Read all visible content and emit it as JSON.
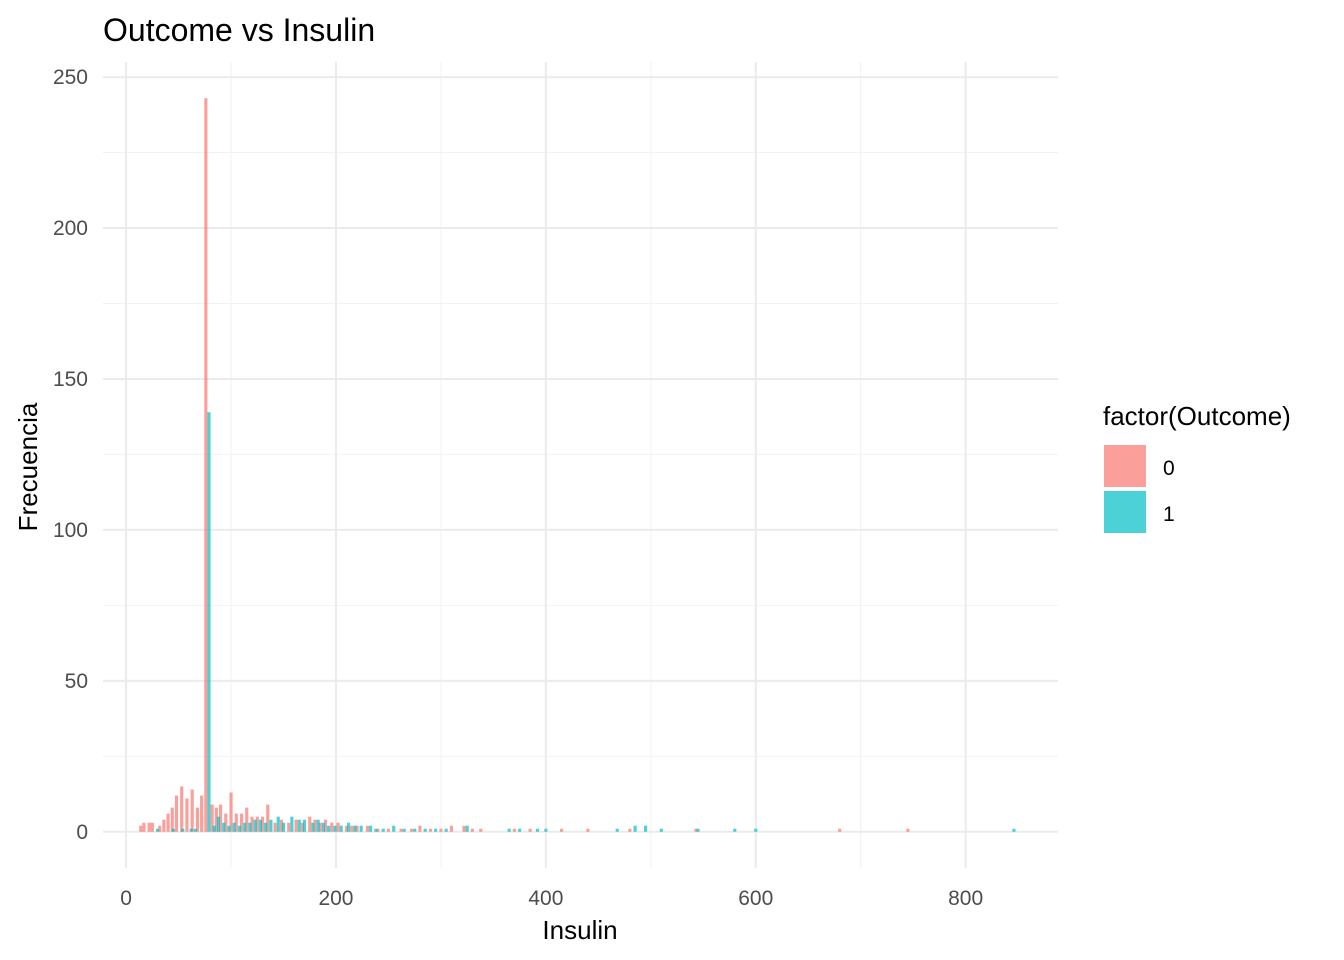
{
  "chart_data": {
    "type": "bar",
    "title": "Outcome vs Insulin",
    "xlabel": "Insulin",
    "ylabel": "Frecuencia",
    "xlim": [
      -22,
      888
    ],
    "ylim": [
      -12,
      255
    ],
    "xticks": [
      0,
      200,
      400,
      600,
      800
    ],
    "yticks": [
      0,
      50,
      100,
      150,
      200,
      250
    ],
    "grid": true,
    "legend": {
      "title": "factor(Outcome)",
      "placement": "right",
      "entries": [
        {
          "label": "0",
          "color": "#F8766D"
        },
        {
          "label": "1",
          "color": "#00BFC4"
        }
      ]
    },
    "bar_width": 3,
    "series": [
      {
        "name": "0",
        "color": "#F8766D",
        "points": [
          {
            "x": 14,
            "y": 2
          },
          {
            "x": 17,
            "y": 3
          },
          {
            "x": 22,
            "y": 3
          },
          {
            "x": 25,
            "y": 3
          },
          {
            "x": 32,
            "y": 2
          },
          {
            "x": 36,
            "y": 4
          },
          {
            "x": 40,
            "y": 6
          },
          {
            "x": 44,
            "y": 8
          },
          {
            "x": 48,
            "y": 12
          },
          {
            "x": 53,
            "y": 15
          },
          {
            "x": 58,
            "y": 11
          },
          {
            "x": 63,
            "y": 14
          },
          {
            "x": 68,
            "y": 8
          },
          {
            "x": 72,
            "y": 12
          },
          {
            "x": 76,
            "y": 243
          },
          {
            "x": 82,
            "y": 9
          },
          {
            "x": 86,
            "y": 8
          },
          {
            "x": 90,
            "y": 9
          },
          {
            "x": 95,
            "y": 6
          },
          {
            "x": 100,
            "y": 13
          },
          {
            "x": 105,
            "y": 6
          },
          {
            "x": 110,
            "y": 6
          },
          {
            "x": 115,
            "y": 8
          },
          {
            "x": 120,
            "y": 5
          },
          {
            "x": 125,
            "y": 5
          },
          {
            "x": 130,
            "y": 5
          },
          {
            "x": 135,
            "y": 9
          },
          {
            "x": 142,
            "y": 3
          },
          {
            "x": 148,
            "y": 4
          },
          {
            "x": 155,
            "y": 3
          },
          {
            "x": 162,
            "y": 4
          },
          {
            "x": 168,
            "y": 3
          },
          {
            "x": 175,
            "y": 5
          },
          {
            "x": 180,
            "y": 4
          },
          {
            "x": 185,
            "y": 3
          },
          {
            "x": 190,
            "y": 4
          },
          {
            "x": 196,
            "y": 3
          },
          {
            "x": 202,
            "y": 3
          },
          {
            "x": 210,
            "y": 2
          },
          {
            "x": 215,
            "y": 2
          },
          {
            "x": 220,
            "y": 2
          },
          {
            "x": 230,
            "y": 2
          },
          {
            "x": 240,
            "y": 1
          },
          {
            "x": 250,
            "y": 1
          },
          {
            "x": 262,
            "y": 1
          },
          {
            "x": 272,
            "y": 1
          },
          {
            "x": 280,
            "y": 2
          },
          {
            "x": 290,
            "y": 1
          },
          {
            "x": 300,
            "y": 1
          },
          {
            "x": 310,
            "y": 2
          },
          {
            "x": 322,
            "y": 2
          },
          {
            "x": 330,
            "y": 1
          },
          {
            "x": 338,
            "y": 1
          },
          {
            "x": 370,
            "y": 1
          },
          {
            "x": 385,
            "y": 1
          },
          {
            "x": 415,
            "y": 1
          },
          {
            "x": 440,
            "y": 1
          },
          {
            "x": 480,
            "y": 1
          },
          {
            "x": 543,
            "y": 1
          },
          {
            "x": 680,
            "y": 1
          },
          {
            "x": 745,
            "y": 1
          }
        ]
      },
      {
        "name": "1",
        "color": "#00BFC4",
        "points": [
          {
            "x": 30,
            "y": 1
          },
          {
            "x": 45,
            "y": 1
          },
          {
            "x": 54,
            "y": 1
          },
          {
            "x": 62,
            "y": 1
          },
          {
            "x": 66,
            "y": 1
          },
          {
            "x": 79,
            "y": 139
          },
          {
            "x": 84,
            "y": 2
          },
          {
            "x": 88,
            "y": 5
          },
          {
            "x": 93,
            "y": 3
          },
          {
            "x": 98,
            "y": 2
          },
          {
            "x": 103,
            "y": 3
          },
          {
            "x": 108,
            "y": 2
          },
          {
            "x": 113,
            "y": 3
          },
          {
            "x": 118,
            "y": 3
          },
          {
            "x": 123,
            "y": 4
          },
          {
            "x": 128,
            "y": 4
          },
          {
            "x": 133,
            "y": 3
          },
          {
            "x": 138,
            "y": 4
          },
          {
            "x": 145,
            "y": 5
          },
          {
            "x": 150,
            "y": 3
          },
          {
            "x": 158,
            "y": 5
          },
          {
            "x": 165,
            "y": 4
          },
          {
            "x": 170,
            "y": 4
          },
          {
            "x": 178,
            "y": 3
          },
          {
            "x": 183,
            "y": 4
          },
          {
            "x": 188,
            "y": 3
          },
          {
            "x": 193,
            "y": 2
          },
          {
            "x": 199,
            "y": 2
          },
          {
            "x": 205,
            "y": 2
          },
          {
            "x": 212,
            "y": 3
          },
          {
            "x": 218,
            "y": 2
          },
          {
            "x": 224,
            "y": 2
          },
          {
            "x": 233,
            "y": 2
          },
          {
            "x": 238,
            "y": 1
          },
          {
            "x": 245,
            "y": 1
          },
          {
            "x": 255,
            "y": 2
          },
          {
            "x": 265,
            "y": 1
          },
          {
            "x": 275,
            "y": 1
          },
          {
            "x": 285,
            "y": 1
          },
          {
            "x": 295,
            "y": 1
          },
          {
            "x": 305,
            "y": 1
          },
          {
            "x": 325,
            "y": 2
          },
          {
            "x": 365,
            "y": 1
          },
          {
            "x": 375,
            "y": 1
          },
          {
            "x": 392,
            "y": 1
          },
          {
            "x": 400,
            "y": 1
          },
          {
            "x": 468,
            "y": 1
          },
          {
            "x": 485,
            "y": 2
          },
          {
            "x": 495,
            "y": 2
          },
          {
            "x": 510,
            "y": 1
          },
          {
            "x": 545,
            "y": 1
          },
          {
            "x": 580,
            "y": 1
          },
          {
            "x": 600,
            "y": 1
          },
          {
            "x": 846,
            "y": 1
          }
        ]
      }
    ]
  }
}
